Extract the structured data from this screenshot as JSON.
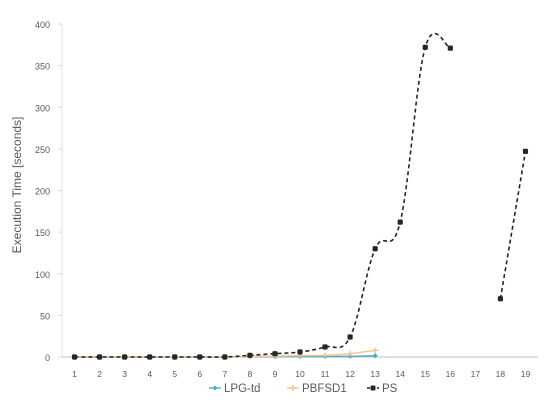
{
  "chart_data": {
    "type": "line",
    "title": "",
    "xlabel": "",
    "ylabel": "Execution Time [seconds]",
    "x": [
      1,
      2,
      3,
      4,
      5,
      6,
      7,
      8,
      9,
      10,
      11,
      12,
      13,
      14,
      15,
      16,
      17,
      18,
      19
    ],
    "ylim": [
      0,
      400
    ],
    "yticks": [
      0,
      50,
      100,
      150,
      200,
      250,
      300,
      350,
      400
    ],
    "grid": false,
    "legend_position": "bottom",
    "series": [
      {
        "name": "LPG-td",
        "color": "#4bacc6",
        "line_style": "solid",
        "marker": "diamond",
        "values": [
          0,
          0,
          0,
          0,
          0,
          0,
          0,
          0.2,
          0.3,
          0.4,
          0.5,
          0.8,
          1.5,
          null,
          null,
          null,
          null,
          null,
          null
        ]
      },
      {
        "name": "PBFSD1",
        "color": "#f9c08a",
        "line_style": "solid",
        "marker": "plus",
        "values": [
          0,
          0,
          0,
          0,
          0,
          0,
          0,
          0.5,
          1,
          1.5,
          2,
          4,
          8,
          null,
          null,
          null,
          null,
          null,
          null
        ]
      },
      {
        "name": "PS",
        "color": "#262626",
        "line_style": "dashed",
        "marker": "circle",
        "values": [
          0,
          0,
          0,
          0,
          0,
          0,
          0,
          2,
          4,
          6,
          12,
          24,
          130,
          162,
          372,
          371,
          null,
          70,
          247
        ]
      }
    ]
  }
}
